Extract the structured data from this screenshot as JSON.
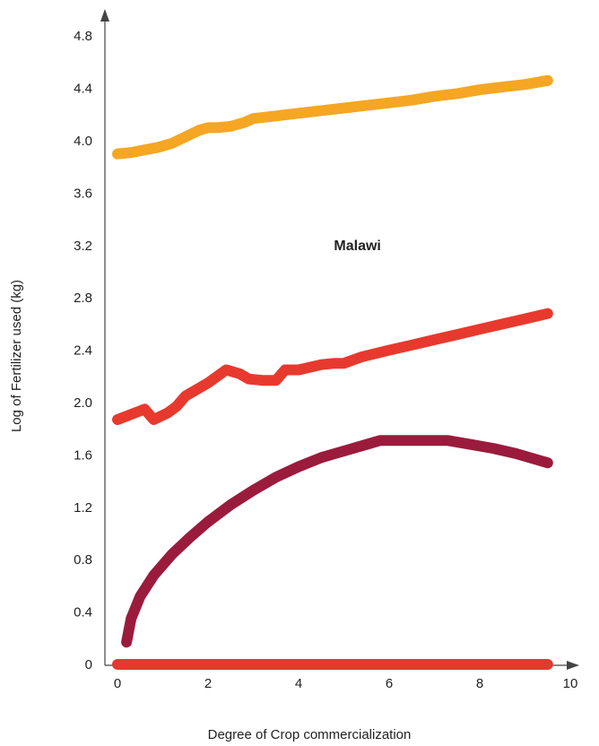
{
  "chart_data": {
    "type": "line",
    "title": "",
    "xlabel": "Degree of Crop commercialization",
    "ylabel": "Log of Fertilizer used (kg)",
    "xlim": [
      0,
      10
    ],
    "ylim": [
      0,
      4.8
    ],
    "xticks": [
      "0",
      "2",
      "4",
      "6",
      "8",
      "10"
    ],
    "yticks": [
      "0",
      "0.4",
      "0.8",
      "1.2",
      "1.6",
      "2.0",
      "2.4",
      "2.8",
      "3.2",
      "3.6",
      "4.0",
      "4.4",
      "4.8"
    ],
    "annotations": [
      {
        "text": "Malawi",
        "x": 5.3,
        "y": 3.2
      }
    ],
    "grid": false,
    "legend": "none",
    "series": [
      {
        "color": "#F5A623",
        "x": [
          0.0,
          0.3,
          0.6,
          0.9,
          1.2,
          1.5,
          1.8,
          2.0,
          2.2,
          2.5,
          2.8,
          3.0,
          3.5,
          4.0,
          4.5,
          5.0,
          5.5,
          6.0,
          6.5,
          7.0,
          7.5,
          8.0,
          8.5,
          9.0,
          9.5
        ],
        "y": [
          3.9,
          3.91,
          3.93,
          3.95,
          3.98,
          4.03,
          4.08,
          4.1,
          4.1,
          4.11,
          4.14,
          4.17,
          4.19,
          4.21,
          4.23,
          4.25,
          4.27,
          4.29,
          4.31,
          4.34,
          4.36,
          4.39,
          4.41,
          4.43,
          4.46
        ]
      },
      {
        "color": "#E8392E",
        "x": [
          0.0,
          0.6,
          0.8,
          1.1,
          1.3,
          1.5,
          2.0,
          2.4,
          2.7,
          2.9,
          3.2,
          3.5,
          3.7,
          4.0,
          4.5,
          4.8,
          5.0,
          5.4,
          6.0,
          6.5,
          7.0,
          7.5,
          8.0,
          8.5,
          9.0,
          9.5
        ],
        "y": [
          1.87,
          1.95,
          1.87,
          1.92,
          1.97,
          2.05,
          2.15,
          2.25,
          2.22,
          2.18,
          2.17,
          2.17,
          2.25,
          2.25,
          2.29,
          2.3,
          2.3,
          2.35,
          2.4,
          2.44,
          2.48,
          2.52,
          2.56,
          2.6,
          2.64,
          2.68
        ]
      },
      {
        "color": "#9B1B3C",
        "x": [
          0.2,
          0.3,
          0.5,
          0.8,
          1.2,
          1.6,
          2.0,
          2.5,
          3.0,
          3.5,
          4.0,
          4.5,
          5.0,
          5.5,
          5.8,
          6.0,
          6.5,
          7.0,
          7.3,
          7.8,
          8.3,
          8.8,
          9.2,
          9.5
        ],
        "y": [
          0.17,
          0.35,
          0.52,
          0.68,
          0.84,
          0.97,
          1.09,
          1.22,
          1.33,
          1.43,
          1.51,
          1.58,
          1.63,
          1.68,
          1.71,
          1.71,
          1.71,
          1.71,
          1.71,
          1.68,
          1.65,
          1.61,
          1.57,
          1.54
        ]
      },
      {
        "color": "#E23A2E",
        "x": [
          0.0,
          9.5
        ],
        "y": [
          0.0,
          0.0
        ]
      }
    ]
  }
}
